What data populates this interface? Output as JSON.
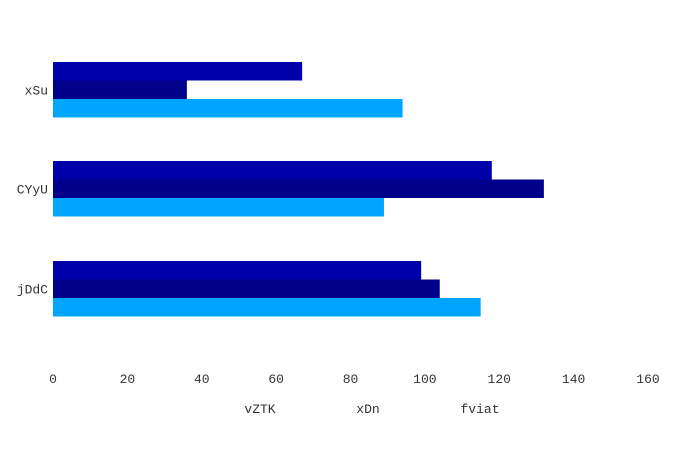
{
  "chart_data": {
    "type": "bar",
    "orientation": "horizontal",
    "categories": [
      "xSu",
      "CYyU",
      "jDdC"
    ],
    "series": [
      {
        "name": "vZTK",
        "values": [
          67,
          118,
          99
        ],
        "color": "#0000aa"
      },
      {
        "name": "xDn",
        "values": [
          36,
          132,
          104
        ],
        "color": "#00008b"
      },
      {
        "name": "fviat",
        "values": [
          94,
          89,
          115
        ],
        "color": "#00a5ff"
      }
    ],
    "xlim": [
      0,
      160
    ],
    "xticks": [
      "0",
      "20",
      "40",
      "60",
      "80",
      "100",
      "120",
      "140",
      "160"
    ],
    "grid": false,
    "legend_position": "bottom",
    "title": "",
    "xlabel": "",
    "ylabel": ""
  }
}
